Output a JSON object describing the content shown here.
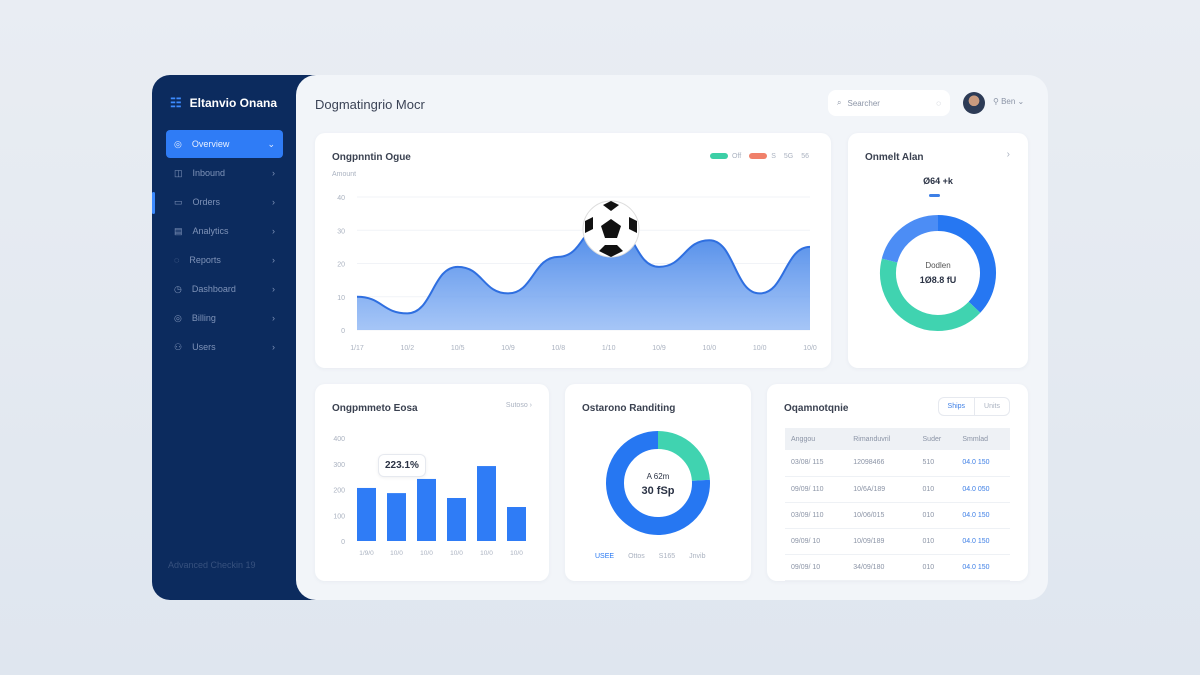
{
  "sidebar": {
    "brand": "Eltanvio Onana",
    "items": [
      {
        "label": "Overview",
        "icon": "circle-icon"
      },
      {
        "label": "Inbound",
        "icon": "layers-icon"
      },
      {
        "label": "Orders",
        "icon": "file-icon"
      },
      {
        "label": "Analytics",
        "icon": "grid-icon"
      },
      {
        "label": "Reports",
        "icon": "refresh-icon"
      },
      {
        "label": "Dashboard",
        "icon": "clock-icon"
      },
      {
        "label": "Billing",
        "icon": "circle-icon"
      },
      {
        "label": "Users",
        "icon": "user-icon"
      }
    ],
    "footer": "Advanced  Checkin  19"
  },
  "header": {
    "title": "Dogmatingrio Mocr",
    "search_placeholder": "Searcher",
    "user": "Ben"
  },
  "area_card": {
    "title": "Ongpnntin Ogue",
    "subtitle": "Amount",
    "legend": [
      {
        "label": "Off",
        "color": "#3ccfa6"
      },
      {
        "label": "S",
        "color": "#f0806a"
      },
      {
        "label": "5G"
      },
      {
        "label": "56"
      }
    ]
  },
  "donut1": {
    "title": "Onmelt Alan",
    "value": "Ø64 +k",
    "center_label": "Dodlen",
    "center_value": "1Ø8.8 fU"
  },
  "bar_card": {
    "title": "Ongpmmeto Eosa",
    "link": "Sutoso",
    "tooltip": "223.1%"
  },
  "donut2": {
    "title": "Ostarono Randiting",
    "center_label": "A 62m",
    "center_value": "30 fSp",
    "legend": [
      "USEE",
      "Ottos",
      "S165",
      "Jnvib"
    ]
  },
  "table_card": {
    "title": "Oqamnotqnie",
    "tabs": [
      "Ships",
      "Units"
    ],
    "columns": [
      "Anggou",
      "Rimanduvril",
      "Suder",
      "Smmlad"
    ],
    "rows": [
      [
        "03/08/ 115",
        "12098466",
        "510",
        "04.0 150"
      ],
      [
        "09/09/ 110",
        "10/6A/189",
        "010",
        "04.0 050"
      ],
      [
        "03/09/ 110",
        "10/06/015",
        "010",
        "04.0 150"
      ],
      [
        "09/09/ 10",
        "10/09/189",
        "010",
        "04.0 150"
      ],
      [
        "09/09/ 10",
        "34/09/180",
        "010",
        "04.0 150"
      ]
    ]
  },
  "chart_data": [
    {
      "type": "area",
      "title": "Ongpnntin Ogue",
      "ylabel": "Amount",
      "ylim": [
        0,
        40
      ],
      "yticks": [
        "0",
        "10",
        "20",
        "30",
        "40"
      ],
      "categories": [
        "1/17",
        "10/2",
        "10/5",
        "10/9",
        "10/8",
        "1/10",
        "10/9",
        "10/0",
        "10/0",
        "10/0"
      ],
      "values": [
        10,
        5,
        19,
        11,
        22,
        33,
        19,
        27,
        11,
        25
      ],
      "color": "#3d7fe6"
    },
    {
      "type": "bar",
      "title": "Ongpmmeto Eosa",
      "ylim": [
        0,
        400
      ],
      "yticks": [
        "0",
        "100",
        "200",
        "300",
        "400"
      ],
      "categories": [
        "1/9/0",
        "10/0",
        "10/0",
        "10/0",
        "10/0",
        "10/0"
      ],
      "values": [
        206,
        186,
        241,
        167,
        291,
        132
      ],
      "color": "#2f7cf6"
    },
    {
      "type": "pie",
      "title": "Onmelt Alan",
      "values": [
        37,
        42,
        21
      ],
      "colors": [
        "#2677f2",
        "#40d3b0",
        "#4c8df5"
      ]
    },
    {
      "type": "pie",
      "title": "Ostarono Randiting",
      "values": [
        24,
        76
      ],
      "colors": [
        "#40d3b0",
        "#2677f2"
      ]
    }
  ]
}
